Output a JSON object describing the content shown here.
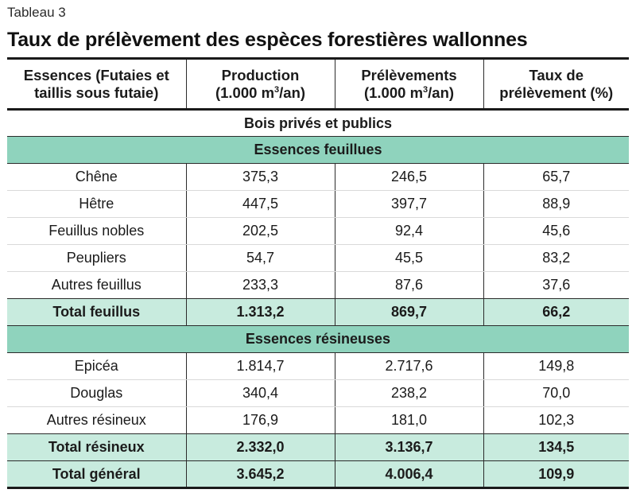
{
  "table_label": "Tableau 3",
  "title": "Taux de prélèvement des espèces forestières wallonnes",
  "columns": {
    "essences": [
      "Essences (Futaies et",
      "taillis sous futaie)"
    ],
    "production": {
      "line1": "Production",
      "unit_pre": "(1.000 m",
      "unit_sup": "3",
      "unit_post": "/an)"
    },
    "prelevements": {
      "line1": "Prélèvements",
      "unit_pre": "(1.000 m",
      "unit_sup": "3",
      "unit_post": "/an)"
    },
    "taux": [
      "Taux de",
      "prélèvement (%)"
    ]
  },
  "section_title": "Bois privés et publics",
  "groups": {
    "feuillus": {
      "label": "Essences feuillues",
      "rows": [
        {
          "name": "Chêne",
          "production": "375,3",
          "prelevements": "246,5",
          "taux": "65,7"
        },
        {
          "name": "Hêtre",
          "production": "447,5",
          "prelevements": "397,7",
          "taux": "88,9"
        },
        {
          "name": "Feuillus nobles",
          "production": "202,5",
          "prelevements": "92,4",
          "taux": "45,6"
        },
        {
          "name": "Peupliers",
          "production": "54,7",
          "prelevements": "45,5",
          "taux": "83,2"
        },
        {
          "name": "Autres feuillus",
          "production": "233,3",
          "prelevements": "87,6",
          "taux": "37,6"
        }
      ],
      "total": {
        "name": "Total feuillus",
        "production": "1.313,2",
        "prelevements": "869,7",
        "taux": "66,2"
      }
    },
    "resineux": {
      "label": "Essences résineuses",
      "rows": [
        {
          "name": "Epicéa",
          "production": "1.814,7",
          "prelevements": "2.717,6",
          "taux": "149,8"
        },
        {
          "name": "Douglas",
          "production": "340,4",
          "prelevements": "238,2",
          "taux": "70,0"
        },
        {
          "name": "Autres résineux",
          "production": "176,9",
          "prelevements": "181,0",
          "taux": "102,3"
        }
      ],
      "total": {
        "name": "Total résineux",
        "production": "2.332,0",
        "prelevements": "3.136,7",
        "taux": "134,5"
      }
    }
  },
  "grand_total": {
    "name": "Total général",
    "production": "3.645,2",
    "prelevements": "4.006,4",
    "taux": "109,9"
  },
  "colors": {
    "group_band": "#8fd3bd",
    "total_band": "#c8ebde",
    "rule": "#1a1a1a"
  }
}
